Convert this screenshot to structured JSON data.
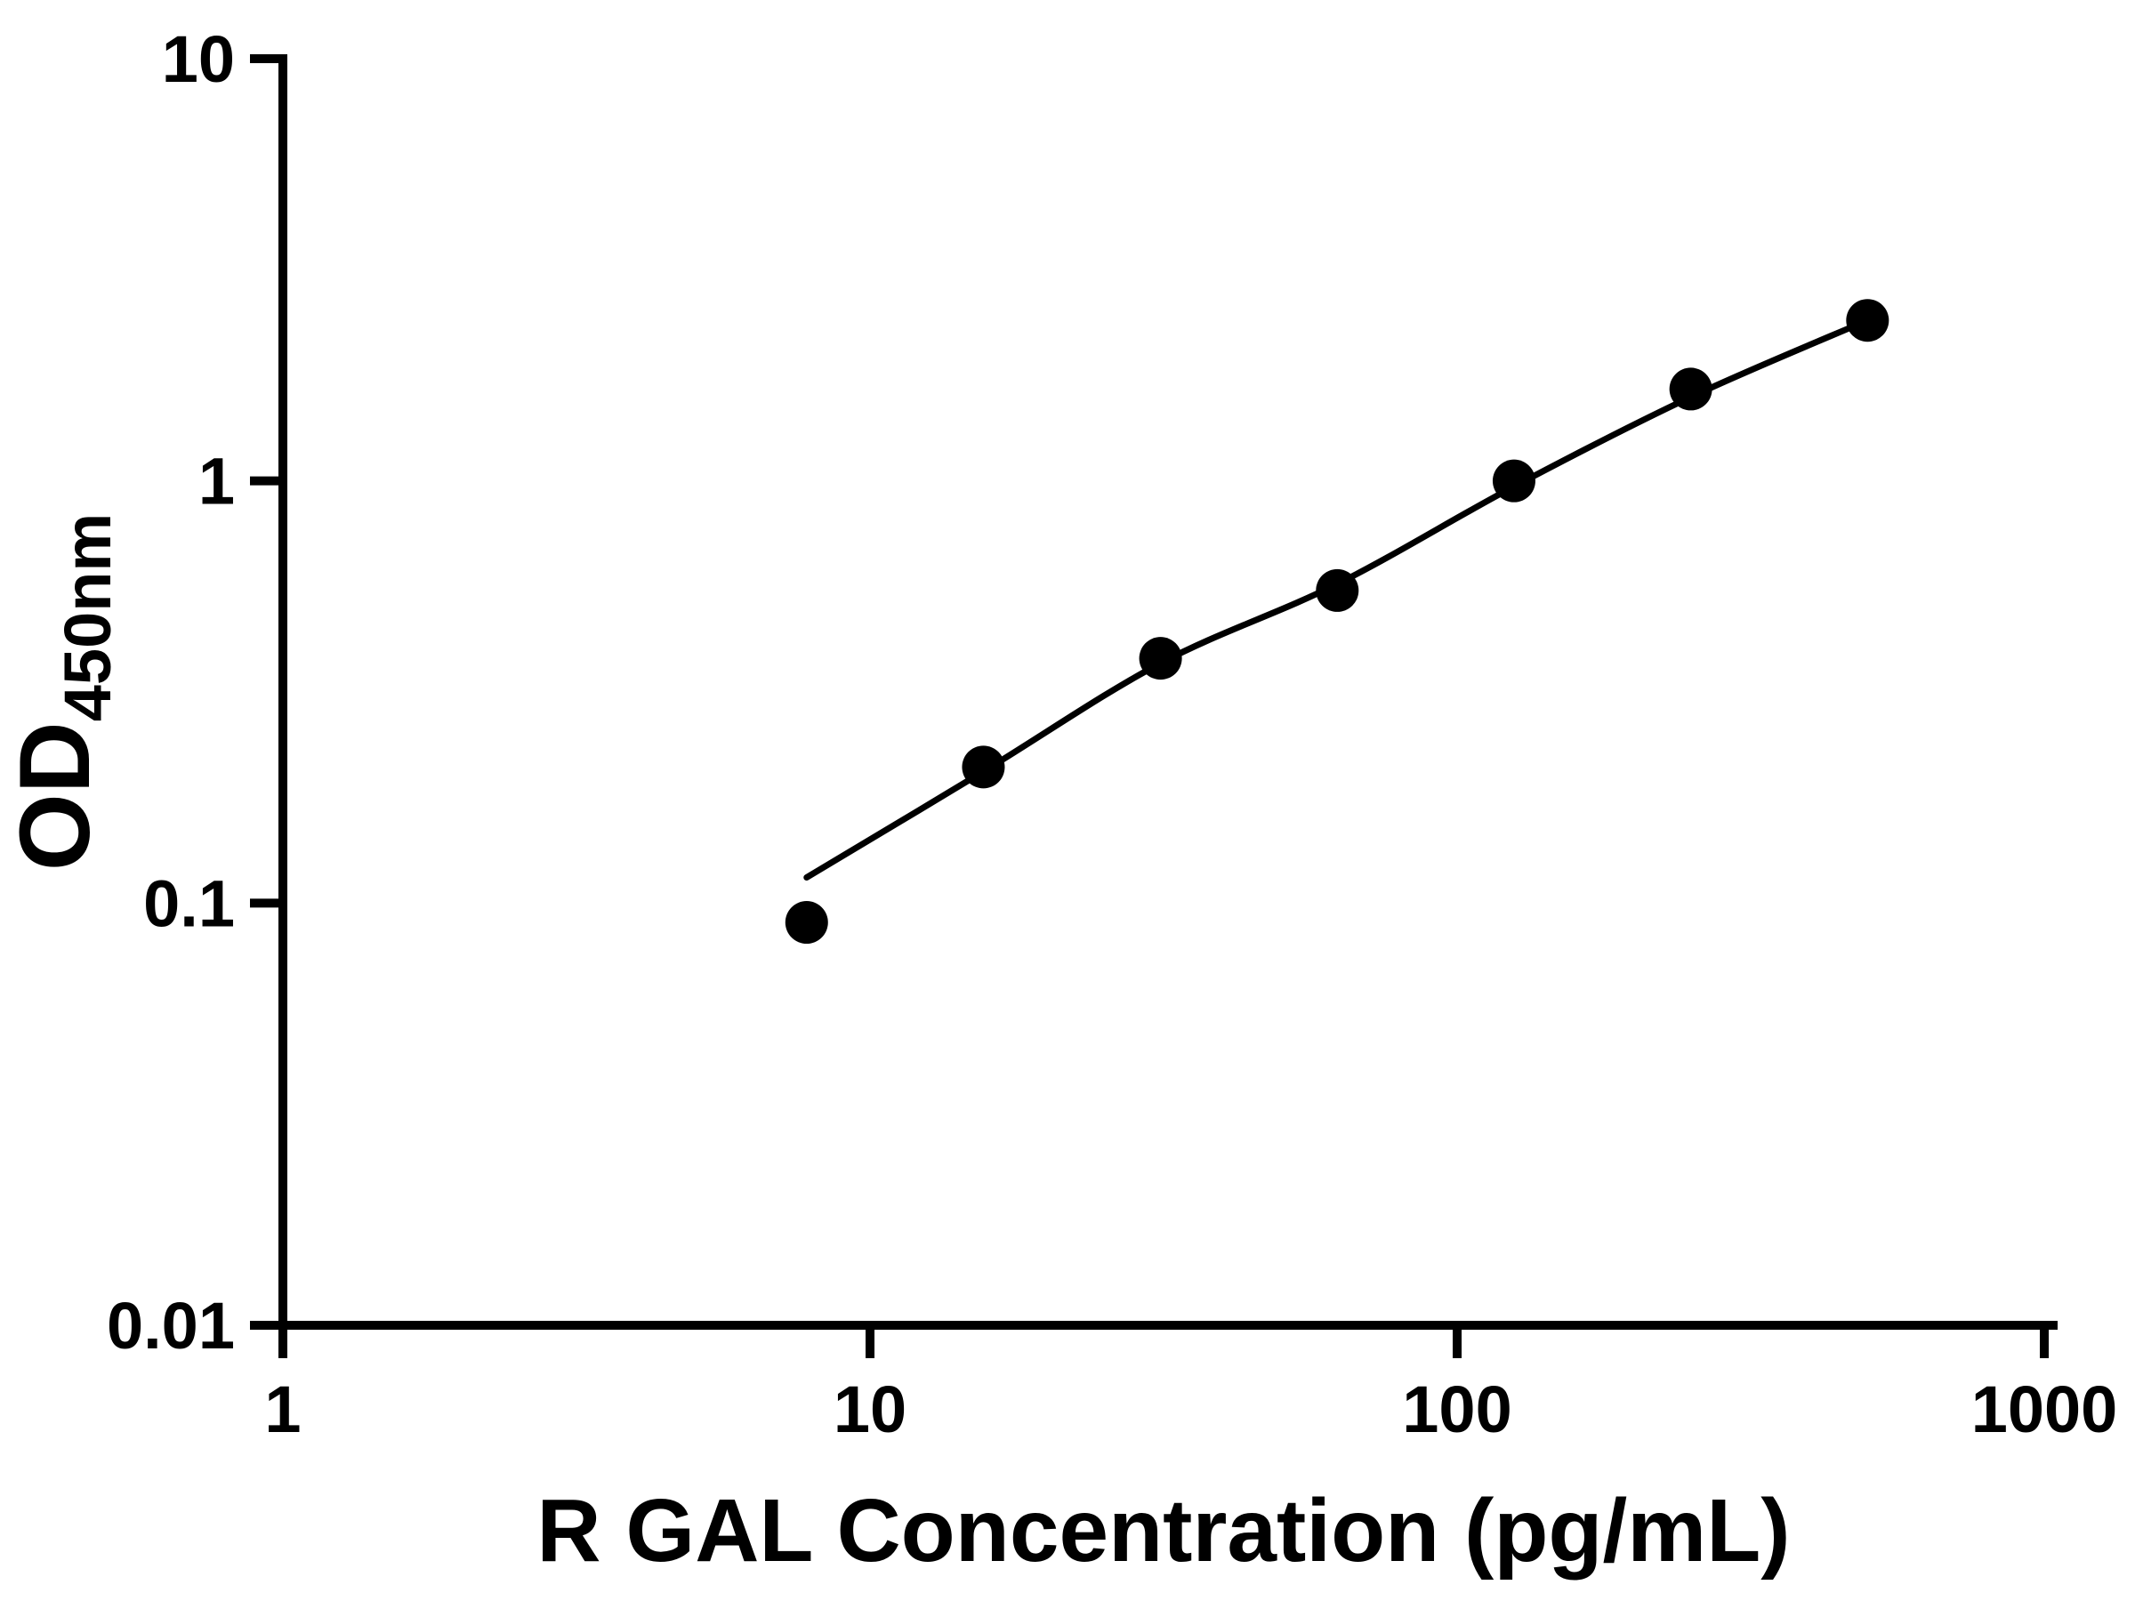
{
  "chart_data": {
    "type": "scatter",
    "title": "",
    "xlabel": "R GAL Concentration (pg/mL)",
    "ylabel_main": "OD",
    "ylabel_sub": "450nm",
    "x_scale": "log",
    "y_scale": "log",
    "xlim": [
      1,
      1000
    ],
    "ylim": [
      0.01,
      10
    ],
    "x_ticks": [
      1,
      10,
      100,
      1000
    ],
    "x_tick_labels": [
      "1",
      "10",
      "100",
      "1000"
    ],
    "y_ticks": [
      0.01,
      0.1,
      1,
      10
    ],
    "y_tick_labels": [
      "0.01",
      "0.1",
      "1",
      "10"
    ],
    "grid": false,
    "legend": null,
    "points": [
      {
        "x": 7.8,
        "y": 0.09
      },
      {
        "x": 15.6,
        "y": 0.21
      },
      {
        "x": 31.25,
        "y": 0.38
      },
      {
        "x": 62.5,
        "y": 0.55
      },
      {
        "x": 125,
        "y": 1.0
      },
      {
        "x": 250,
        "y": 1.65
      },
      {
        "x": 500,
        "y": 2.4
      }
    ],
    "fit_curve": [
      {
        "x": 7.8,
        "y": 0.115
      },
      {
        "x": 15.6,
        "y": 0.205
      },
      {
        "x": 31.25,
        "y": 0.37
      },
      {
        "x": 62.5,
        "y": 0.57
      },
      {
        "x": 125,
        "y": 0.97
      },
      {
        "x": 250,
        "y": 1.58
      },
      {
        "x": 500,
        "y": 2.4
      }
    ],
    "colors": {
      "points": "#000000",
      "line": "#000000",
      "axis": "#000000",
      "text": "#000000",
      "background": "#ffffff"
    }
  }
}
